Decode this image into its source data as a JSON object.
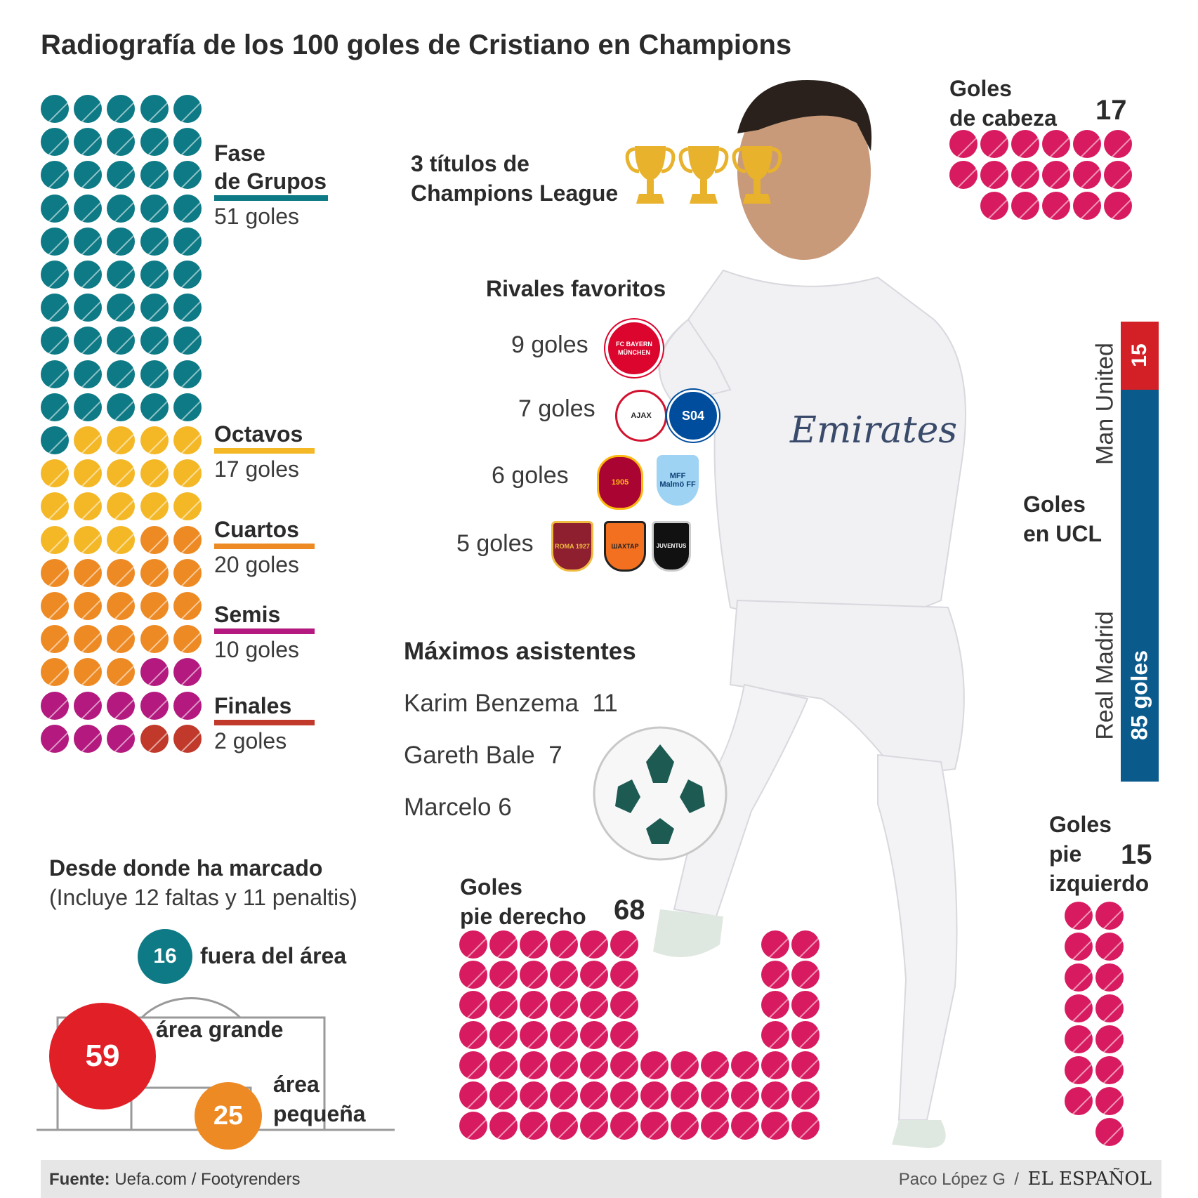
{
  "title": "Radiografía de los 100 goles de Cristiano en Champions",
  "colors": {
    "grupos": "#0d7a85",
    "octavos": "#f4b827",
    "cuartos": "#ee8a23",
    "semis": "#b3197f",
    "finales": "#c0392b",
    "goals": "#d81b60",
    "man_united": "#d32027",
    "real_madrid": "#0a5a8c",
    "trophy": "#e8b22c"
  },
  "stages": [
    {
      "name_lines": [
        "Fase",
        "de Grupos"
      ],
      "count": "51 goles",
      "value": 51,
      "color_key": "grupos"
    },
    {
      "name_lines": [
        "Octavos"
      ],
      "count": "17 goles",
      "value": 17,
      "color_key": "octavos"
    },
    {
      "name_lines": [
        "Cuartos"
      ],
      "count": "20 goles",
      "value": 20,
      "color_key": "cuartos"
    },
    {
      "name_lines": [
        "Semis"
      ],
      "count": "10 goles",
      "value": 10,
      "color_key": "semis"
    },
    {
      "name_lines": [
        "Finales"
      ],
      "count": "2 goles",
      "value": 2,
      "color_key": "finales"
    }
  ],
  "titles": {
    "line1": "3 títulos de",
    "line2": "Champions League",
    "count": 3
  },
  "rivals": {
    "heading": "Rivales favoritos",
    "rows": [
      {
        "label": "9 goles",
        "clubs": [
          {
            "name": "bayern-munchen",
            "text": "FC BAYERN MÜNCHEN"
          }
        ]
      },
      {
        "label": "7 goles",
        "clubs": [
          {
            "name": "ajax",
            "text": "AJAX"
          },
          {
            "name": "schalke",
            "text": "S04"
          }
        ]
      },
      {
        "label": "6 goles",
        "clubs": [
          {
            "name": "galatasaray",
            "text": "1905"
          },
          {
            "name": "malmo",
            "text": "MFF Malmö FF"
          }
        ]
      },
      {
        "label": "5 goles",
        "clubs": [
          {
            "name": "roma",
            "text": "ROMA 1927"
          },
          {
            "name": "shakhtar",
            "text": "ШАХТАР"
          },
          {
            "name": "juventus",
            "text": "JUVENTUS"
          }
        ]
      }
    ]
  },
  "assists": {
    "heading": "Máximos asistentes",
    "rows": [
      {
        "name": "Karim Benzema",
        "value": "11"
      },
      {
        "name": "Gareth Bale",
        "value": "7"
      },
      {
        "name": "Marcelo",
        "value": "6"
      }
    ]
  },
  "header_goals": {
    "line1": "Goles",
    "line2": "de cabeza",
    "value": "17",
    "count": 17
  },
  "right_foot": {
    "line1": "Goles",
    "line2": "pie derecho",
    "value": "68",
    "count": 68
  },
  "left_foot": {
    "line1": "Goles",
    "line2": "pie",
    "line3": "izquierdo",
    "value": "15",
    "count": 15
  },
  "ucl_clubs": {
    "heading_line1": "Goles",
    "heading_line2": "en UCL",
    "man_united_label": "Man United",
    "man_united_value": "15",
    "real_madrid_label": "Real Madrid",
    "real_madrid_value": "85 goles"
  },
  "zones": {
    "heading": "Desde donde ha marcado",
    "subheading": "(Incluye 12 faltas y 11 penaltis)",
    "outside": {
      "value": "16",
      "label": "fuera del área"
    },
    "big_area": {
      "value": "59",
      "label": "área grande"
    },
    "small_area": {
      "value": "25",
      "label_line1": "área",
      "label_line2": "pequeña"
    }
  },
  "footer": {
    "source_label": "Fuente:",
    "source_text": "Uefa.com / Footyrenders",
    "author": "Paco López G",
    "separator": "/",
    "brand": "EL ESPAÑOL"
  }
}
